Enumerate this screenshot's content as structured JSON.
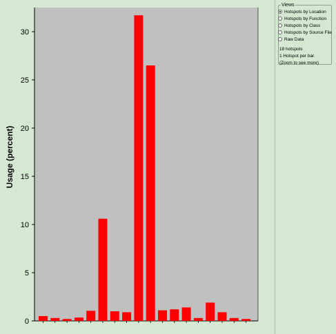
{
  "views": {
    "title": "Views",
    "options": [
      {
        "label": "Hotspots by Location",
        "checked": true
      },
      {
        "label": "Hotspots by Function",
        "checked": false
      },
      {
        "label": "Hotspots by Class",
        "checked": false
      },
      {
        "label": "Hotspots by Source File",
        "checked": false
      },
      {
        "label": "Raw Data",
        "checked": false
      }
    ],
    "info_lines": [
      "18 hotspots",
      "1 Hotspot per bar.",
      "(Zoom to see more)"
    ]
  },
  "colors": {
    "bar": "#ff0000",
    "plot_bg": "#c0c0c0",
    "page_bg": "#d4e8d2"
  },
  "chart_data": {
    "type": "bar",
    "ylabel": "Usage (percent)",
    "ylim": [
      0,
      32.5
    ],
    "yticks": [
      0,
      5,
      10,
      15,
      20,
      25,
      30
    ],
    "values": [
      0.5,
      0.3,
      0.2,
      0.35,
      1.05,
      10.6,
      1.0,
      0.9,
      31.7,
      26.5,
      1.1,
      1.2,
      1.4,
      0.3,
      1.9,
      0.9,
      0.3,
      0.2
    ]
  }
}
